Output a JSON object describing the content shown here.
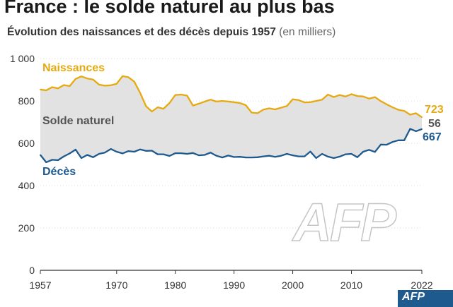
{
  "header": {
    "title": "France : le solde naturel au plus bas",
    "subtitle": "Évolution des naissances et des décès depuis 1957",
    "unit_note": "(en milliers)"
  },
  "branding": {
    "watermark": "AFP",
    "corner_logo": "AFP"
  },
  "colors": {
    "births": "#e6a912",
    "deaths": "#1f5a8f",
    "fill": "#e2e2e2",
    "label_balance": "#555555",
    "axis": "#333333",
    "grid": "#d9d9d9"
  },
  "chart_data": {
    "type": "line",
    "title": "France : le solde naturel au plus bas",
    "ylim": [
      0,
      1000
    ],
    "xlim": [
      1957,
      2022
    ],
    "yticks": [
      0,
      200,
      400,
      600,
      800,
      1000
    ],
    "ytick_labels": [
      "0",
      "200",
      "400",
      "600",
      "800",
      "1 000"
    ],
    "xticks": [
      1957,
      1970,
      1980,
      1990,
      2000,
      2010,
      2022
    ],
    "x": [
      1957,
      1958,
      1959,
      1960,
      1961,
      1962,
      1963,
      1964,
      1965,
      1966,
      1967,
      1968,
      1969,
      1970,
      1971,
      1972,
      1973,
      1974,
      1975,
      1976,
      1977,
      1978,
      1979,
      1980,
      1981,
      1982,
      1983,
      1984,
      1985,
      1986,
      1987,
      1988,
      1989,
      1990,
      1991,
      1992,
      1993,
      1994,
      1995,
      1996,
      1997,
      1998,
      1999,
      2000,
      2001,
      2002,
      2003,
      2004,
      2005,
      2006,
      2007,
      2008,
      2009,
      2010,
      2011,
      2012,
      2013,
      2014,
      2015,
      2016,
      2017,
      2018,
      2019,
      2020,
      2021,
      2022
    ],
    "series": [
      {
        "name": "Naissances",
        "values": [
          854,
          850,
          865,
          859,
          875,
          870,
          904,
          916,
          906,
          901,
          877,
          872,
          874,
          881,
          917,
          912,
          891,
          838,
          775,
          750,
          770,
          763,
          790,
          828,
          830,
          825,
          778,
          787,
          797,
          806,
          797,
          800,
          797,
          794,
          790,
          780,
          745,
          742,
          759,
          765,
          760,
          768,
          776,
          808,
          804,
          793,
          794,
          800,
          806,
          830,
          818,
          828,
          821,
          832,
          823,
          821,
          811,
          818,
          799,
          784,
          770,
          758,
          753,
          735,
          742,
          723
        ]
      },
      {
        "name": "Décès",
        "values": [
          545,
          510,
          522,
          520,
          538,
          552,
          570,
          530,
          545,
          534,
          550,
          556,
          573,
          560,
          552,
          563,
          560,
          571,
          564,
          565,
          548,
          548,
          540,
          553,
          553,
          550,
          554,
          543,
          545,
          556,
          541,
          533,
          542,
          535,
          536,
          533,
          533,
          534,
          538,
          541,
          536,
          541,
          550,
          543,
          538,
          538,
          561,
          530,
          550,
          537,
          530,
          537,
          548,
          550,
          534,
          560,
          569,
          559,
          594,
          593,
          606,
          614,
          614,
          668,
          657,
          667
        ]
      }
    ],
    "end_labels": {
      "births": "723",
      "balance": "56",
      "deaths": "667"
    },
    "annotations": {
      "births_label": "Naissances",
      "deaths_label": "Décès",
      "balance_label": "Solde naturel"
    }
  }
}
